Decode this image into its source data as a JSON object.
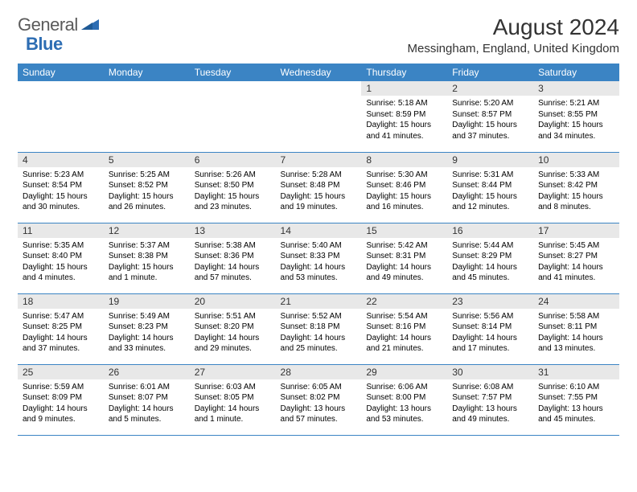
{
  "logo": {
    "part1": "General",
    "part2": "Blue"
  },
  "title": "August 2024",
  "location": "Messingham, England, United Kingdom",
  "colors": {
    "header_bg": "#3b84c4",
    "header_text": "#ffffff",
    "daynum_bg": "#e8e8e8",
    "rule": "#3b84c4",
    "logo_gray": "#5a5a5a",
    "logo_blue": "#2d6db3"
  },
  "weekdays": [
    "Sunday",
    "Monday",
    "Tuesday",
    "Wednesday",
    "Thursday",
    "Friday",
    "Saturday"
  ],
  "first_weekday_index": 4,
  "days": [
    {
      "n": "1",
      "sr": "5:18 AM",
      "ss": "8:59 PM",
      "dl": "15 hours and 41 minutes."
    },
    {
      "n": "2",
      "sr": "5:20 AM",
      "ss": "8:57 PM",
      "dl": "15 hours and 37 minutes."
    },
    {
      "n": "3",
      "sr": "5:21 AM",
      "ss": "8:55 PM",
      "dl": "15 hours and 34 minutes."
    },
    {
      "n": "4",
      "sr": "5:23 AM",
      "ss": "8:54 PM",
      "dl": "15 hours and 30 minutes."
    },
    {
      "n": "5",
      "sr": "5:25 AM",
      "ss": "8:52 PM",
      "dl": "15 hours and 26 minutes."
    },
    {
      "n": "6",
      "sr": "5:26 AM",
      "ss": "8:50 PM",
      "dl": "15 hours and 23 minutes."
    },
    {
      "n": "7",
      "sr": "5:28 AM",
      "ss": "8:48 PM",
      "dl": "15 hours and 19 minutes."
    },
    {
      "n": "8",
      "sr": "5:30 AM",
      "ss": "8:46 PM",
      "dl": "15 hours and 16 minutes."
    },
    {
      "n": "9",
      "sr": "5:31 AM",
      "ss": "8:44 PM",
      "dl": "15 hours and 12 minutes."
    },
    {
      "n": "10",
      "sr": "5:33 AM",
      "ss": "8:42 PM",
      "dl": "15 hours and 8 minutes."
    },
    {
      "n": "11",
      "sr": "5:35 AM",
      "ss": "8:40 PM",
      "dl": "15 hours and 4 minutes."
    },
    {
      "n": "12",
      "sr": "5:37 AM",
      "ss": "8:38 PM",
      "dl": "15 hours and 1 minute."
    },
    {
      "n": "13",
      "sr": "5:38 AM",
      "ss": "8:36 PM",
      "dl": "14 hours and 57 minutes."
    },
    {
      "n": "14",
      "sr": "5:40 AM",
      "ss": "8:33 PM",
      "dl": "14 hours and 53 minutes."
    },
    {
      "n": "15",
      "sr": "5:42 AM",
      "ss": "8:31 PM",
      "dl": "14 hours and 49 minutes."
    },
    {
      "n": "16",
      "sr": "5:44 AM",
      "ss": "8:29 PM",
      "dl": "14 hours and 45 minutes."
    },
    {
      "n": "17",
      "sr": "5:45 AM",
      "ss": "8:27 PM",
      "dl": "14 hours and 41 minutes."
    },
    {
      "n": "18",
      "sr": "5:47 AM",
      "ss": "8:25 PM",
      "dl": "14 hours and 37 minutes."
    },
    {
      "n": "19",
      "sr": "5:49 AM",
      "ss": "8:23 PM",
      "dl": "14 hours and 33 minutes."
    },
    {
      "n": "20",
      "sr": "5:51 AM",
      "ss": "8:20 PM",
      "dl": "14 hours and 29 minutes."
    },
    {
      "n": "21",
      "sr": "5:52 AM",
      "ss": "8:18 PM",
      "dl": "14 hours and 25 minutes."
    },
    {
      "n": "22",
      "sr": "5:54 AM",
      "ss": "8:16 PM",
      "dl": "14 hours and 21 minutes."
    },
    {
      "n": "23",
      "sr": "5:56 AM",
      "ss": "8:14 PM",
      "dl": "14 hours and 17 minutes."
    },
    {
      "n": "24",
      "sr": "5:58 AM",
      "ss": "8:11 PM",
      "dl": "14 hours and 13 minutes."
    },
    {
      "n": "25",
      "sr": "5:59 AM",
      "ss": "8:09 PM",
      "dl": "14 hours and 9 minutes."
    },
    {
      "n": "26",
      "sr": "6:01 AM",
      "ss": "8:07 PM",
      "dl": "14 hours and 5 minutes."
    },
    {
      "n": "27",
      "sr": "6:03 AM",
      "ss": "8:05 PM",
      "dl": "14 hours and 1 minute."
    },
    {
      "n": "28",
      "sr": "6:05 AM",
      "ss": "8:02 PM",
      "dl": "13 hours and 57 minutes."
    },
    {
      "n": "29",
      "sr": "6:06 AM",
      "ss": "8:00 PM",
      "dl": "13 hours and 53 minutes."
    },
    {
      "n": "30",
      "sr": "6:08 AM",
      "ss": "7:57 PM",
      "dl": "13 hours and 49 minutes."
    },
    {
      "n": "31",
      "sr": "6:10 AM",
      "ss": "7:55 PM",
      "dl": "13 hours and 45 minutes."
    }
  ],
  "labels": {
    "sunrise": "Sunrise:",
    "sunset": "Sunset:",
    "daylight": "Daylight:"
  }
}
